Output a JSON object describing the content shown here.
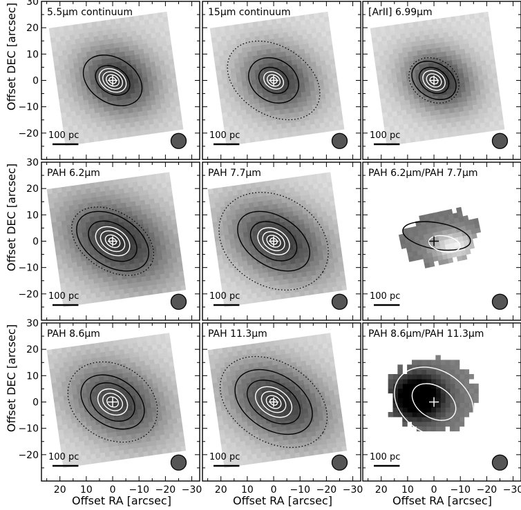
{
  "figure": {
    "xlabel": "Offset RA [arcsec]",
    "ylabel": "Offset DEC [arcsec]",
    "xticks": [
      "20",
      "10",
      "0",
      "−10",
      "−20",
      "−30"
    ],
    "yticks": [
      "−20",
      "−10",
      "0",
      "10",
      "20",
      "30"
    ]
  },
  "chart_data": {
    "type": "heatmap",
    "layout": "3x3 grid of maps",
    "x_axis": {
      "label": "Offset RA [arcsec]",
      "range": [
        27,
        -33
      ],
      "ticks": [
        20,
        10,
        0,
        -10,
        -20,
        -30
      ]
    },
    "y_axis": {
      "label": "Offset DEC [arcsec]",
      "range": [
        -30,
        30
      ],
      "ticks": [
        -20,
        -10,
        0,
        10,
        20,
        30
      ]
    },
    "scalebar_arcsec": 7,
    "beam_position": [
      -25,
      -23
    ],
    "panels": [
      {
        "title": "5.5μm continuum",
        "scalebar": "100 pc",
        "map": {
          "cx": 0,
          "cy": 0,
          "hw": 22,
          "hh": 22,
          "angle": 8,
          "sx": 11,
          "sy": 9,
          "tilt": 35,
          "base": 0.85,
          "peak": 0.2
        },
        "contours": [
          {
            "rx": 12,
            "ry": 8.5,
            "style": "solid",
            "color": "black"
          },
          {
            "rx": 7,
            "ry": 5,
            "style": "solid",
            "color": "black"
          },
          {
            "rx": 5.5,
            "ry": 4,
            "style": "solid",
            "color": "white"
          },
          {
            "rx": 4,
            "ry": 3,
            "style": "solid",
            "color": "white"
          },
          {
            "rx": 2.6,
            "ry": 2,
            "style": "solid",
            "color": "white"
          },
          {
            "rx": 1.4,
            "ry": 1.1,
            "style": "solid",
            "color": "white"
          }
        ]
      },
      {
        "title": "15μm continuum",
        "scalebar": "100 pc",
        "map": {
          "cx": 0,
          "cy": 0,
          "hw": 22,
          "hh": 22,
          "angle": 8,
          "sx": 11,
          "sy": 9,
          "tilt": 35,
          "base": 0.86,
          "peak": 0.25
        },
        "contours": [
          {
            "rx": 19,
            "ry": 13,
            "style": "dotted",
            "color": "black"
          },
          {
            "rx": 10,
            "ry": 8,
            "style": "solid",
            "color": "black"
          },
          {
            "rx": 6,
            "ry": 4.5,
            "style": "solid",
            "color": "black"
          },
          {
            "rx": 4,
            "ry": 3,
            "style": "solid",
            "color": "white"
          },
          {
            "rx": 2.6,
            "ry": 2,
            "style": "solid",
            "color": "white"
          },
          {
            "rx": 1.3,
            "ry": 1.1,
            "style": "solid",
            "color": "white"
          }
        ]
      },
      {
        "title": "[ArII] 6.99μm",
        "scalebar": "100 pc",
        "map": {
          "cx": 0,
          "cy": 0,
          "hw": 22,
          "hh": 22,
          "angle": 8,
          "sx": 10,
          "sy": 8,
          "tilt": 35,
          "base": 0.86,
          "peak": 0.2
        },
        "contours": [
          {
            "rx": 10,
            "ry": 8,
            "style": "dotted",
            "color": "black"
          },
          {
            "rx": 9,
            "ry": 6.5,
            "style": "solid",
            "color": "black"
          },
          {
            "rx": 6,
            "ry": 4.5,
            "style": "solid",
            "color": "black"
          },
          {
            "rx": 4.5,
            "ry": 3.4,
            "style": "solid",
            "color": "white"
          },
          {
            "rx": 3,
            "ry": 2.3,
            "style": "solid",
            "color": "white"
          },
          {
            "rx": 1.6,
            "ry": 1.2,
            "style": "solid",
            "color": "white"
          }
        ]
      },
      {
        "title": "PAH 6.2μm",
        "scalebar": "100 pc",
        "map": {
          "cx": 0,
          "cy": 0,
          "hw": 23,
          "hh": 22,
          "angle": 8,
          "sx": 16,
          "sy": 11,
          "tilt": 35,
          "base": 0.85,
          "peak": 0.2
        },
        "contours": [
          {
            "rx": 17,
            "ry": 11,
            "style": "dotted",
            "color": "black"
          },
          {
            "rx": 15,
            "ry": 9.5,
            "style": "solid",
            "color": "black"
          },
          {
            "rx": 10,
            "ry": 6.5,
            "style": "solid",
            "color": "black"
          },
          {
            "rx": 7,
            "ry": 4.8,
            "style": "solid",
            "color": "white"
          },
          {
            "rx": 5,
            "ry": 3.4,
            "style": "solid",
            "color": "white"
          },
          {
            "rx": 3,
            "ry": 2.1,
            "style": "solid",
            "color": "white"
          },
          {
            "rx": 1.5,
            "ry": 1.1,
            "style": "solid",
            "color": "white"
          }
        ]
      },
      {
        "title": "PAH 7.7μm",
        "scalebar": "100 pc",
        "map": {
          "cx": 0,
          "cy": 0,
          "hw": 23,
          "hh": 22,
          "angle": 8,
          "sx": 15,
          "sy": 10,
          "tilt": 35,
          "base": 0.86,
          "peak": 0.22
        },
        "contours": [
          {
            "rx": 22,
            "ry": 17,
            "style": "dotted",
            "color": "black"
          },
          {
            "rx": 15,
            "ry": 9.5,
            "style": "solid",
            "color": "black"
          },
          {
            "rx": 9.5,
            "ry": 6.5,
            "style": "solid",
            "color": "black"
          },
          {
            "rx": 6.5,
            "ry": 4.5,
            "style": "solid",
            "color": "white"
          },
          {
            "rx": 4.5,
            "ry": 3.2,
            "style": "solid",
            "color": "white"
          },
          {
            "rx": 2.8,
            "ry": 2,
            "style": "solid",
            "color": "white"
          },
          {
            "rx": 1.4,
            "ry": 1.1,
            "style": "solid",
            "color": "white"
          }
        ]
      },
      {
        "title": "PAH 6.2μm/PAH 7.7μm",
        "scalebar": "100 pc",
        "map": {
          "cx": -1,
          "cy": 1,
          "hw": 15,
          "hh": 10,
          "angle": 12,
          "sx": 6,
          "sy": 4,
          "tilt": 10,
          "base": 0.45,
          "peak": 0.95,
          "pcx": -5,
          "pcy": -3
        },
        "contours": [
          {
            "rx": 13,
            "ry": 5,
            "style": "solid",
            "color": "black"
          },
          {
            "rx": 6,
            "ry": 3,
            "style": "solid",
            "color": "white"
          }
        ]
      },
      {
        "title": "PAH 8.6μm",
        "scalebar": "100 pc",
        "map": {
          "cx": 0,
          "cy": 0,
          "hw": 23,
          "hh": 22,
          "angle": 8,
          "sx": 14,
          "sy": 10,
          "tilt": 35,
          "base": 0.85,
          "peak": 0.25
        },
        "contours": [
          {
            "rx": 18,
            "ry": 14,
            "style": "dotted",
            "color": "black"
          },
          {
            "rx": 13,
            "ry": 9,
            "style": "solid",
            "color": "black"
          },
          {
            "rx": 9,
            "ry": 6.5,
            "style": "solid",
            "color": "black"
          },
          {
            "rx": 6,
            "ry": 4.5,
            "style": "solid",
            "color": "white"
          },
          {
            "rx": 4,
            "ry": 3,
            "style": "solid",
            "color": "white"
          },
          {
            "rx": 2.3,
            "ry": 1.8,
            "style": "solid",
            "color": "white"
          }
        ]
      },
      {
        "title": "PAH 11.3μm",
        "scalebar": "100 pc",
        "map": {
          "cx": 0,
          "cy": 0,
          "hw": 23,
          "hh": 22,
          "angle": 8,
          "sx": 15,
          "sy": 10,
          "tilt": 35,
          "base": 0.85,
          "peak": 0.22
        },
        "contours": [
          {
            "rx": 22,
            "ry": 15,
            "style": "dotted",
            "color": "black"
          },
          {
            "rx": 16,
            "ry": 10.5,
            "style": "solid",
            "color": "black"
          },
          {
            "rx": 11,
            "ry": 7,
            "style": "solid",
            "color": "black"
          },
          {
            "rx": 7.5,
            "ry": 5,
            "style": "solid",
            "color": "white"
          },
          {
            "rx": 5,
            "ry": 3.5,
            "style": "solid",
            "color": "white"
          },
          {
            "rx": 3,
            "ry": 2.2,
            "style": "solid",
            "color": "white"
          },
          {
            "rx": 1.5,
            "ry": 1.1,
            "style": "solid",
            "color": "white"
          }
        ]
      },
      {
        "title": "PAH 8.6μm/PAH 11.3μm",
        "scalebar": "100 pc",
        "map": {
          "cx": 2,
          "cy": 3,
          "hw": 17,
          "hh": 14,
          "angle": 0,
          "sx": 7,
          "sy": 6,
          "tilt": 0,
          "base": 0.5,
          "peak": -0.3,
          "pcx": 8,
          "pcy": 2
        },
        "contours": [
          {
            "rx": 16,
            "ry": 12,
            "style": "solid",
            "color": "white"
          },
          {
            "rx": 9,
            "ry": 6,
            "style": "solid",
            "color": "white"
          }
        ]
      }
    ]
  }
}
